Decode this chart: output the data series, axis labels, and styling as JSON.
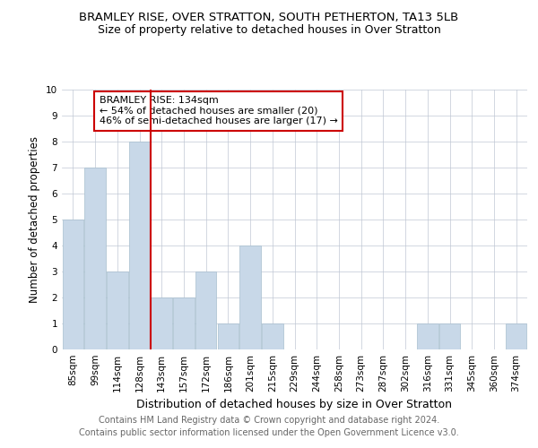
{
  "title": "BRAMLEY RISE, OVER STRATTON, SOUTH PETHERTON, TA13 5LB",
  "subtitle": "Size of property relative to detached houses in Over Stratton",
  "xlabel": "Distribution of detached houses by size in Over Stratton",
  "ylabel": "Number of detached properties",
  "footer1": "Contains HM Land Registry data © Crown copyright and database right 2024.",
  "footer2": "Contains public sector information licensed under the Open Government Licence v3.0.",
  "categories": [
    "85sqm",
    "99sqm",
    "114sqm",
    "128sqm",
    "143sqm",
    "157sqm",
    "172sqm",
    "186sqm",
    "201sqm",
    "215sqm",
    "229sqm",
    "244sqm",
    "258sqm",
    "273sqm",
    "287sqm",
    "302sqm",
    "316sqm",
    "331sqm",
    "345sqm",
    "360sqm",
    "374sqm"
  ],
  "values": [
    5,
    7,
    3,
    8,
    2,
    2,
    3,
    1,
    4,
    1,
    0,
    0,
    0,
    0,
    0,
    0,
    1,
    1,
    0,
    0,
    1
  ],
  "bar_color": "#c8d8e8",
  "bar_edgecolor": "#a8bfcf",
  "vline_x_index": 3.5,
  "vline_color": "#cc0000",
  "annotation_text": "BRAMLEY RISE: 134sqm\n← 54% of detached houses are smaller (20)\n46% of semi-detached houses are larger (17) →",
  "annotation_box_color": "#cc0000",
  "ylim": [
    0,
    10
  ],
  "yticks": [
    0,
    1,
    2,
    3,
    4,
    5,
    6,
    7,
    8,
    9,
    10
  ],
  "background_color": "#ffffff",
  "grid_color": "#c0c8d4",
  "title_fontsize": 9.5,
  "subtitle_fontsize": 9,
  "xlabel_fontsize": 9,
  "ylabel_fontsize": 8.5,
  "tick_fontsize": 7.5,
  "footer_fontsize": 7
}
